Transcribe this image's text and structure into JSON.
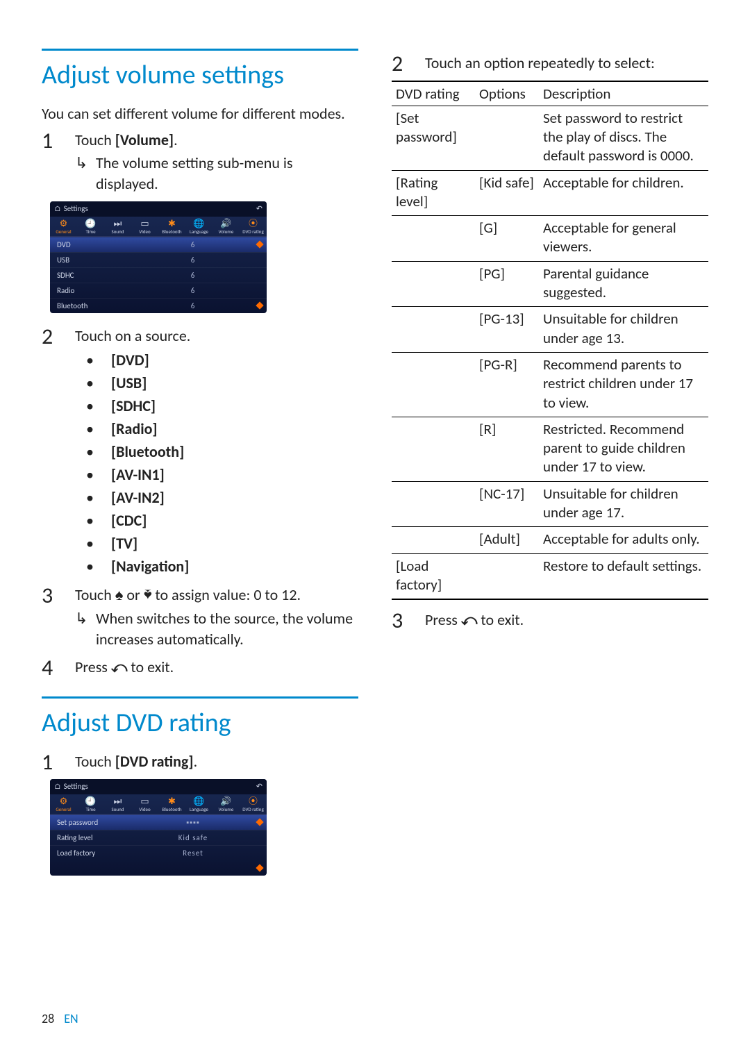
{
  "colors": {
    "accent": "#0089cc",
    "text": "#222222",
    "shot_bg_top": "#1a2a55",
    "shot_bg_bottom": "#0a1230",
    "shot_orange": "#ff8c1a"
  },
  "left": {
    "volume": {
      "heading": "Adjust volume settings",
      "intro": "You can set different volume for different modes.",
      "step1": "Touch ",
      "step1b": "[Volume]",
      "step1_tail": ".",
      "step1_sub": "The volume setting sub-menu is displayed.",
      "screenshot": {
        "title": "Settings",
        "icons": [
          {
            "g": "⚙",
            "l": "General",
            "sel": true
          },
          {
            "g": "🕘",
            "l": "Time"
          },
          {
            "g": "⏭",
            "l": "Sound"
          },
          {
            "g": "▭",
            "l": "Video"
          },
          {
            "g": "✱",
            "l": "Bluetooth",
            "orange": true
          },
          {
            "g": "🌐",
            "l": "Language"
          },
          {
            "g": "🔊",
            "l": "Volume",
            "orange": true
          },
          {
            "g": "⦿",
            "l": "DVD rating",
            "orange": true
          }
        ],
        "rows": [
          {
            "label": "DVD",
            "value": "6",
            "sel": true,
            "diamond": true
          },
          {
            "label": "USB",
            "value": "6"
          },
          {
            "label": "SDHC",
            "value": "6"
          },
          {
            "label": "Radio",
            "value": "6"
          },
          {
            "label": "Bluetooth",
            "value": "6",
            "diamond": true
          }
        ]
      },
      "step2": "Touch on a source.",
      "sources": [
        "[DVD]",
        "[USB]",
        "[SDHC]",
        "[Radio]",
        "[Bluetooth]",
        "[AV-IN1]",
        "[AV-IN2]",
        "[CDC]",
        "[TV]",
        "[Navigation]"
      ],
      "step3_pre": "Touch ",
      "step3_mid": " or ",
      "step3_post": " to assign value: 0 to 12.",
      "step3_sub": "When switches to the source, the volume increases automatically.",
      "step4_pre": "Press ",
      "step4_post": " to exit."
    },
    "dvd": {
      "heading": "Adjust DVD rating",
      "step1": "Touch ",
      "step1b": "[DVD rating]",
      "step1_tail": ".",
      "screenshot": {
        "title": "Settings",
        "rows": [
          {
            "label": "Set password",
            "value": "▪▪▪▪",
            "sel": true,
            "diamond": true
          },
          {
            "label": "Rating level",
            "value": "Kid safe"
          },
          {
            "label": "Load factory",
            "value": "Reset"
          }
        ]
      }
    }
  },
  "right": {
    "step2": "Touch an option repeatedly to select:",
    "table": {
      "headers": [
        "DVD rating",
        "Options",
        "Description"
      ],
      "rows": [
        {
          "c1": "[Set password]",
          "c2": "",
          "c3": "Set password to restrict the play of discs. The default password is 0000.",
          "groupEnd": true
        },
        {
          "c1": "[Rating level]",
          "c2": "[Kid safe]",
          "c3": "Acceptable for children."
        },
        {
          "c1": "",
          "c2": "[G]",
          "c3": "Acceptable for general viewers."
        },
        {
          "c1": "",
          "c2": "[PG]",
          "c3": "Parental guidance suggested."
        },
        {
          "c1": "",
          "c2": "[PG-13]",
          "c3": "Unsuitable for children under age 13."
        },
        {
          "c1": "",
          "c2": "[PG-R]",
          "c3": "Recommend parents to restrict children under 17 to view."
        },
        {
          "c1": "",
          "c2": "[R]",
          "c3": "Restricted. Recommend parent to guide children under 17 to view."
        },
        {
          "c1": "",
          "c2": "[NC-17]",
          "c3": "Unsuitable for children under age 17."
        },
        {
          "c1": "",
          "c2": "[Adult]",
          "c3": "Acceptable for adults only.",
          "groupEnd": true
        },
        {
          "c1": "[Load factory]",
          "c2": "",
          "c3": "Restore to default settings.",
          "last": true
        }
      ]
    },
    "step3_pre": "Press ",
    "step3_post": " to exit."
  },
  "footer": {
    "page": "28",
    "lang": "EN"
  }
}
